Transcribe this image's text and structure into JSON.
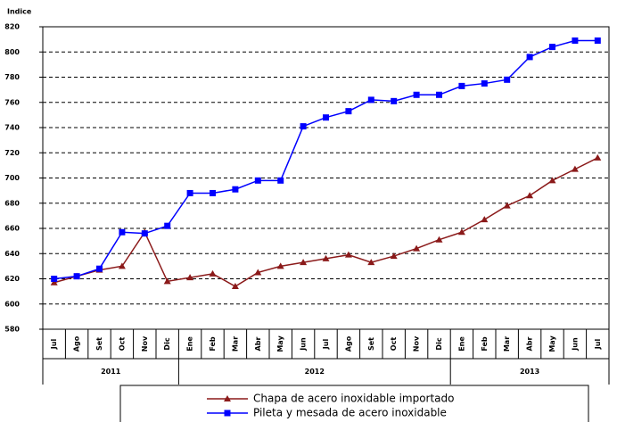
{
  "chart_data": {
    "type": "line",
    "y_label": "Indice",
    "categories": [
      "Jul",
      "Ago",
      "Set",
      "Oct",
      "Nov",
      "Dic",
      "Ene",
      "Feb",
      "Mar",
      "Abr",
      "May",
      "Jun",
      "Jul",
      "Ago",
      "Set",
      "Oct",
      "Nov",
      "Dic",
      "Ene",
      "Feb",
      "Mar",
      "Abr",
      "May",
      "Jun",
      "Jul"
    ],
    "groups": [
      {
        "label": "2011",
        "count": 6
      },
      {
        "label": "2012",
        "count": 12
      },
      {
        "label": "2013",
        "count": 7
      }
    ],
    "series": [
      {
        "name": "Chapa de acero inoxidable importado",
        "color": "#8b1a1a",
        "marker": "triangle",
        "values": [
          617,
          622,
          627,
          630,
          657,
          618,
          621,
          624,
          614,
          625,
          630,
          633,
          636,
          639,
          633,
          638,
          644,
          651,
          657,
          667,
          678,
          686,
          698,
          707,
          716
        ]
      },
      {
        "name": "Pileta y mesada de acero inoxidable",
        "color": "#0000ff",
        "marker": "square",
        "values": [
          620,
          622,
          628,
          657,
          656,
          662,
          688,
          688,
          691,
          698,
          698,
          741,
          748,
          753,
          762,
          761,
          766,
          766,
          773,
          775,
          778,
          796,
          804,
          809,
          809
        ]
      }
    ],
    "ylim": [
      580,
      820
    ],
    "yticks": [
      580,
      600,
      620,
      640,
      660,
      680,
      700,
      720,
      740,
      760,
      780,
      800,
      820
    ],
    "grid": true
  }
}
